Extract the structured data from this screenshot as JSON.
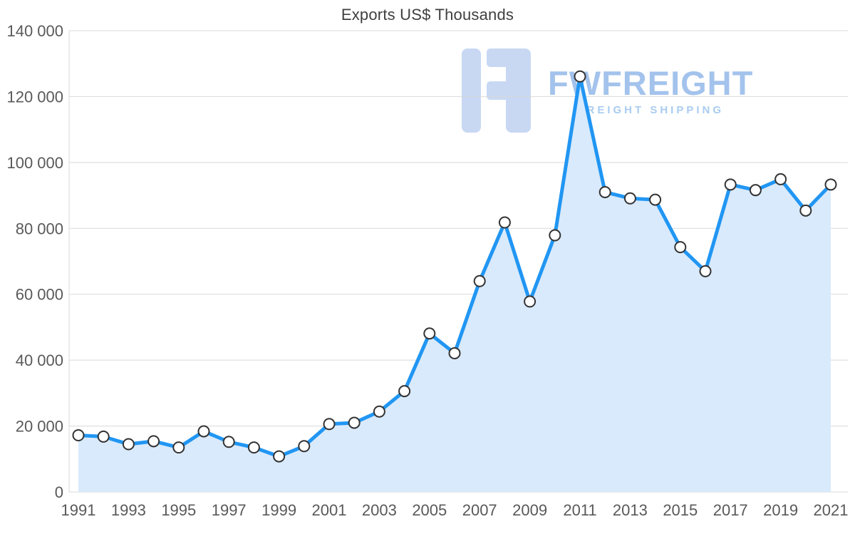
{
  "page": {
    "title": "Exports US$ Thousands"
  },
  "watermark": {
    "brand": "FWFREIGHT",
    "tagline": "FREIGHT SHIPPING"
  },
  "chart_data": {
    "type": "area",
    "title": "Exports US$ Thousands",
    "x": [
      1991,
      1992,
      1993,
      1994,
      1995,
      1996,
      1997,
      1998,
      1999,
      2000,
      2001,
      2002,
      2003,
      2004,
      2005,
      2006,
      2007,
      2008,
      2009,
      2010,
      2011,
      2012,
      2013,
      2014,
      2015,
      2016,
      2017,
      2018,
      2019,
      2020,
      2021
    ],
    "values": [
      17200,
      16800,
      14500,
      15400,
      13500,
      18400,
      15200,
      13500,
      10800,
      13900,
      20600,
      21000,
      24400,
      30600,
      48100,
      42100,
      64000,
      81800,
      57800,
      77900,
      126100,
      91000,
      89100,
      88700,
      74300,
      67000,
      93300,
      91600,
      94900,
      85400,
      93300
    ],
    "xlabel": "",
    "ylabel": "",
    "ylim": [
      0,
      140000
    ],
    "ytick_values": [
      0,
      20000,
      40000,
      60000,
      80000,
      100000,
      120000,
      140000
    ],
    "ytick_labels": [
      "0",
      "20 000",
      "40 000",
      "60 000",
      "80 000",
      "100 000",
      "120 000",
      "140 000"
    ],
    "xtick_labels": [
      "1991",
      "1993",
      "1995",
      "1997",
      "1999",
      "2001",
      "2003",
      "2005",
      "2007",
      "2009",
      "2011",
      "2013",
      "2015",
      "2017",
      "2019",
      "2021"
    ],
    "grid": "horizontal",
    "legend": "none",
    "colors": {
      "line": "#2196f3",
      "fill": "#d9eafc",
      "marker_fill": "#ffffff",
      "marker_stroke": "#333333",
      "grid": "#d9d9d9",
      "axis_text": "#595959",
      "title": "#3f3f3f",
      "watermark_logo": "#c8d8f3",
      "watermark_brand": "#a3c3ec",
      "watermark_tagline": "#a9ccf0"
    }
  }
}
